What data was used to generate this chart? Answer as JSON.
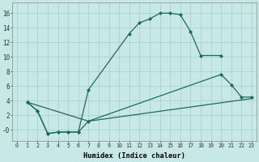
{
  "xlabel": "Humidex (Indice chaleur)",
  "background_color": "#c8e8e8",
  "grid_color": "#a8cccc",
  "line_color": "#1a6b5a",
  "xlim": [
    -0.5,
    23.5
  ],
  "ylim": [
    -1.5,
    17.5
  ],
  "xticks": [
    0,
    1,
    2,
    3,
    4,
    5,
    6,
    7,
    8,
    9,
    10,
    11,
    12,
    13,
    14,
    15,
    16,
    17,
    18,
    19,
    20,
    21,
    22,
    23
  ],
  "yticks": [
    0,
    2,
    4,
    6,
    8,
    10,
    12,
    14,
    16
  ],
  "ytick_labels": [
    "-0",
    "2",
    "4",
    "6",
    "8",
    "10",
    "12",
    "14",
    "16"
  ],
  "line1_x": [
    1,
    2,
    3,
    4,
    5,
    6,
    7,
    11,
    12,
    13,
    14,
    15,
    16,
    17,
    18,
    20
  ],
  "line1_y": [
    3.8,
    2.6,
    -0.5,
    -0.3,
    -0.3,
    -0.3,
    5.5,
    13.2,
    14.7,
    15.2,
    16.0,
    16.0,
    15.8,
    13.5,
    10.2,
    10.2
  ],
  "line2_x": [
    1,
    2,
    3,
    4,
    5,
    6,
    7,
    20,
    21,
    22,
    23
  ],
  "line2_y": [
    3.8,
    2.6,
    -0.5,
    -0.3,
    -0.3,
    -0.3,
    1.2,
    7.6,
    6.2,
    4.5,
    4.5
  ],
  "line3_x": [
    1,
    7,
    23
  ],
  "line3_y": [
    3.8,
    1.2,
    4.3
  ]
}
